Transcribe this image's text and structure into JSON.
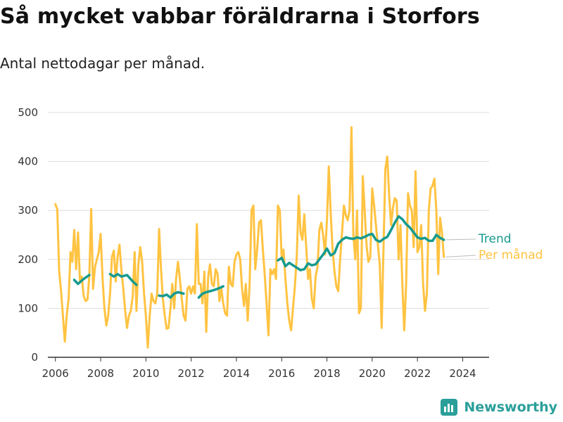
{
  "title": "Så mycket vabbar föräldrarna i Storfors",
  "subtitle": "Antal nettodagar per månad.",
  "brand": "Newsworthy",
  "colors": {
    "monthly": "#FFC342",
    "trend": "#169A8F",
    "grid": "#dddddd",
    "axis": "#333333",
    "brand": "#2A9F9A"
  },
  "chart_data": {
    "type": "line",
    "title": "Så mycket vabbar föräldrarna i Storfors",
    "subtitle": "Antal nettodagar per månad.",
    "xlabel": "",
    "ylabel": "",
    "xlim": [
      "2005-09",
      "2025-03"
    ],
    "ylim": [
      0,
      500
    ],
    "yticks": [
      0,
      100,
      200,
      300,
      400,
      500
    ],
    "xticks": [
      "2006",
      "2008",
      "2010",
      "2012",
      "2014",
      "2016",
      "2018",
      "2020",
      "2022",
      "2024"
    ],
    "grid": true,
    "legend_position": "right",
    "series": [
      {
        "name": "Per månad",
        "points": [
          [
            "2006-01",
            313
          ],
          [
            "2006-02",
            302
          ],
          [
            "2006-03",
            175
          ],
          [
            "2006-04",
            135
          ],
          [
            "2006-05",
            85
          ],
          [
            "2006-06",
            32
          ],
          [
            "2006-07",
            85
          ],
          [
            "2006-08",
            120
          ],
          [
            "2006-09",
            215
          ],
          [
            "2006-10",
            195
          ],
          [
            "2006-11",
            260
          ],
          [
            "2006-12",
            180
          ],
          [
            "2007-01",
            255
          ],
          [
            "2007-02",
            155
          ],
          [
            "2007-03",
            165
          ],
          [
            "2007-04",
            125
          ],
          [
            "2007-05",
            115
          ],
          [
            "2007-06",
            118
          ],
          [
            "2007-07",
            165
          ],
          [
            "2007-08",
            303
          ],
          [
            "2007-09",
            140
          ],
          [
            "2007-10",
            185
          ],
          [
            "2007-11",
            200
          ],
          [
            "2007-12",
            215
          ],
          [
            "2008-01",
            252
          ],
          [
            "2008-02",
            162
          ],
          [
            "2008-03",
            100
          ],
          [
            "2008-04",
            65
          ],
          [
            "2008-05",
            85
          ],
          [
            "2008-06",
            130
          ],
          [
            "2008-07",
            205
          ],
          [
            "2008-08",
            218
          ],
          [
            "2008-09",
            155
          ],
          [
            "2008-10",
            205
          ],
          [
            "2008-11",
            230
          ],
          [
            "2008-12",
            178
          ],
          [
            "2009-01",
            140
          ],
          [
            "2009-02",
            95
          ],
          [
            "2009-03",
            60
          ],
          [
            "2009-04",
            85
          ],
          [
            "2009-05",
            95
          ],
          [
            "2009-06",
            125
          ],
          [
            "2009-07",
            215
          ],
          [
            "2009-08",
            95
          ],
          [
            "2009-09",
            190
          ],
          [
            "2009-10",
            225
          ],
          [
            "2009-11",
            195
          ],
          [
            "2009-12",
            130
          ],
          [
            "2010-01",
            85
          ],
          [
            "2010-02",
            20
          ],
          [
            "2010-03",
            85
          ],
          [
            "2010-04",
            130
          ],
          [
            "2010-05",
            115
          ],
          [
            "2010-06",
            110
          ],
          [
            "2010-07",
            130
          ],
          [
            "2010-08",
            262
          ],
          [
            "2010-09",
            180
          ],
          [
            "2010-10",
            120
          ],
          [
            "2010-11",
            85
          ],
          [
            "2010-12",
            58
          ],
          [
            "2011-01",
            60
          ],
          [
            "2011-02",
            100
          ],
          [
            "2011-03",
            150
          ],
          [
            "2011-04",
            100
          ],
          [
            "2011-05",
            160
          ],
          [
            "2011-06",
            195
          ],
          [
            "2011-07",
            160
          ],
          [
            "2011-08",
            120
          ],
          [
            "2011-09",
            85
          ],
          [
            "2011-10",
            75
          ],
          [
            "2011-11",
            140
          ],
          [
            "2011-12",
            145
          ],
          [
            "2012-01",
            130
          ],
          [
            "2012-02",
            145
          ],
          [
            "2012-03",
            130
          ],
          [
            "2012-04",
            272
          ],
          [
            "2012-05",
            150
          ],
          [
            "2012-06",
            150
          ],
          [
            "2012-07",
            110
          ],
          [
            "2012-08",
            175
          ],
          [
            "2012-09",
            52
          ],
          [
            "2012-10",
            165
          ],
          [
            "2012-11",
            190
          ],
          [
            "2012-12",
            150
          ],
          [
            "2013-01",
            145
          ],
          [
            "2013-02",
            180
          ],
          [
            "2013-03",
            170
          ],
          [
            "2013-04",
            115
          ],
          [
            "2013-05",
            140
          ],
          [
            "2013-06",
            110
          ],
          [
            "2013-07",
            90
          ],
          [
            "2013-08",
            85
          ],
          [
            "2013-09",
            185
          ],
          [
            "2013-10",
            150
          ],
          [
            "2013-11",
            145
          ],
          [
            "2013-12",
            195
          ],
          [
            "2014-01",
            210
          ],
          [
            "2014-02",
            215
          ],
          [
            "2014-03",
            200
          ],
          [
            "2014-04",
            140
          ],
          [
            "2014-05",
            105
          ],
          [
            "2014-06",
            150
          ],
          [
            "2014-07",
            75
          ],
          [
            "2014-08",
            150
          ],
          [
            "2014-09",
            300
          ],
          [
            "2014-10",
            310
          ],
          [
            "2014-11",
            180
          ],
          [
            "2014-12",
            220
          ],
          [
            "2015-01",
            275
          ],
          [
            "2015-02",
            280
          ],
          [
            "2015-03",
            220
          ],
          [
            "2015-04",
            170
          ],
          [
            "2015-05",
            110
          ],
          [
            "2015-06",
            45
          ],
          [
            "2015-07",
            180
          ],
          [
            "2015-08",
            170
          ],
          [
            "2015-09",
            180
          ],
          [
            "2015-10",
            160
          ],
          [
            "2015-11",
            310
          ],
          [
            "2015-12",
            300
          ],
          [
            "2016-01",
            200
          ],
          [
            "2016-02",
            220
          ],
          [
            "2016-03",
            160
          ],
          [
            "2016-04",
            110
          ],
          [
            "2016-05",
            75
          ],
          [
            "2016-06",
            55
          ],
          [
            "2016-07",
            100
          ],
          [
            "2016-08",
            145
          ],
          [
            "2016-09",
            205
          ],
          [
            "2016-10",
            330
          ],
          [
            "2016-11",
            255
          ],
          [
            "2016-12",
            240
          ],
          [
            "2017-01",
            292
          ],
          [
            "2017-02",
            225
          ],
          [
            "2017-03",
            160
          ],
          [
            "2017-04",
            180
          ],
          [
            "2017-05",
            120
          ],
          [
            "2017-06",
            100
          ],
          [
            "2017-07",
            165
          ],
          [
            "2017-08",
            185
          ],
          [
            "2017-09",
            260
          ],
          [
            "2017-10",
            275
          ],
          [
            "2017-11",
            250
          ],
          [
            "2017-12",
            210
          ],
          [
            "2018-01",
            280
          ],
          [
            "2018-02",
            390
          ],
          [
            "2018-03",
            295
          ],
          [
            "2018-04",
            220
          ],
          [
            "2018-05",
            175
          ],
          [
            "2018-06",
            145
          ],
          [
            "2018-07",
            135
          ],
          [
            "2018-08",
            200
          ],
          [
            "2018-09",
            255
          ],
          [
            "2018-10",
            310
          ],
          [
            "2018-11",
            290
          ],
          [
            "2018-12",
            280
          ],
          [
            "2019-01",
            300
          ],
          [
            "2019-02",
            470
          ],
          [
            "2019-03",
            250
          ],
          [
            "2019-04",
            200
          ],
          [
            "2019-05",
            300
          ],
          [
            "2019-06",
            90
          ],
          [
            "2019-07",
            100
          ],
          [
            "2019-08",
            370
          ],
          [
            "2019-09",
            300
          ],
          [
            "2019-10",
            230
          ],
          [
            "2019-11",
            195
          ],
          [
            "2019-12",
            205
          ],
          [
            "2020-01",
            345
          ],
          [
            "2020-02",
            310
          ],
          [
            "2020-03",
            270
          ],
          [
            "2020-04",
            230
          ],
          [
            "2020-05",
            190
          ],
          [
            "2020-06",
            60
          ],
          [
            "2020-07",
            220
          ],
          [
            "2020-08",
            385
          ],
          [
            "2020-09",
            410
          ],
          [
            "2020-10",
            330
          ],
          [
            "2020-11",
            270
          ],
          [
            "2020-12",
            305
          ],
          [
            "2021-01",
            325
          ],
          [
            "2021-02",
            320
          ],
          [
            "2021-03",
            200
          ],
          [
            "2021-04",
            270
          ],
          [
            "2021-05",
            150
          ],
          [
            "2021-06",
            55
          ],
          [
            "2021-07",
            150
          ],
          [
            "2021-08",
            335
          ],
          [
            "2021-09",
            310
          ],
          [
            "2021-10",
            300
          ],
          [
            "2021-11",
            225
          ],
          [
            "2021-12",
            380
          ],
          [
            "2022-01",
            215
          ],
          [
            "2022-02",
            225
          ],
          [
            "2022-03",
            270
          ],
          [
            "2022-04",
            150
          ],
          [
            "2022-05",
            95
          ],
          [
            "2022-06",
            130
          ],
          [
            "2022-07",
            300
          ],
          [
            "2022-08",
            345
          ],
          [
            "2022-09",
            350
          ],
          [
            "2022-10",
            365
          ],
          [
            "2022-11",
            300
          ],
          [
            "2022-12",
            170
          ],
          [
            "2023-01",
            285
          ],
          [
            "2023-02",
            255
          ],
          [
            "2023-03",
            205
          ]
        ]
      },
      {
        "name": "Trend",
        "segments": [
          [
            [
              "2006-11",
              158
            ],
            [
              "2007-01",
              150
            ],
            [
              "2007-04",
              160
            ],
            [
              "2007-07",
              168
            ]
          ],
          [
            [
              "2008-06",
              170
            ],
            [
              "2008-08",
              165
            ],
            [
              "2008-10",
              170
            ],
            [
              "2008-12",
              165
            ],
            [
              "2009-03",
              168
            ],
            [
              "2009-06",
              155
            ],
            [
              "2009-08",
              148
            ]
          ],
          [
            [
              "2010-08",
              126
            ],
            [
              "2010-10",
              125
            ],
            [
              "2010-12",
              128
            ],
            [
              "2011-02",
              122
            ],
            [
              "2011-04",
              130
            ],
            [
              "2011-06",
              133
            ],
            [
              "2011-09",
              130
            ]
          ],
          [
            [
              "2012-05",
              122
            ],
            [
              "2012-07",
              130
            ],
            [
              "2012-09",
              133
            ],
            [
              "2012-12",
              136
            ],
            [
              "2013-03",
              140
            ],
            [
              "2013-06",
              145
            ]
          ],
          [
            [
              "2015-11",
              198
            ],
            [
              "2016-01",
              203
            ],
            [
              "2016-03",
              186
            ],
            [
              "2016-05",
              193
            ],
            [
              "2016-07",
              188
            ],
            [
              "2016-09",
              183
            ],
            [
              "2016-11",
              178
            ],
            [
              "2017-01",
              180
            ],
            [
              "2017-03",
              192
            ],
            [
              "2017-05",
              188
            ],
            [
              "2017-07",
              190
            ],
            [
              "2017-09",
              200
            ],
            [
              "2017-11",
              210
            ],
            [
              "2018-01",
              222
            ],
            [
              "2018-03",
              208
            ],
            [
              "2018-05",
              213
            ],
            [
              "2018-07",
              232
            ],
            [
              "2018-09",
              240
            ],
            [
              "2018-11",
              245
            ],
            [
              "2019-01",
              243
            ],
            [
              "2019-03",
              242
            ],
            [
              "2019-05",
              245
            ],
            [
              "2019-07",
              243
            ],
            [
              "2019-09",
              246
            ],
            [
              "2019-11",
              250
            ],
            [
              "2020-01",
              252
            ],
            [
              "2020-03",
              240
            ],
            [
              "2020-05",
              236
            ],
            [
              "2020-07",
              242
            ],
            [
              "2020-09",
              246
            ],
            [
              "2020-11",
              260
            ],
            [
              "2021-01",
              275
            ],
            [
              "2021-03",
              288
            ],
            [
              "2021-05",
              282
            ],
            [
              "2021-07",
              272
            ],
            [
              "2021-09",
              265
            ],
            [
              "2021-11",
              255
            ],
            [
              "2022-01",
              245
            ],
            [
              "2022-03",
              242
            ],
            [
              "2022-05",
              244
            ],
            [
              "2022-07",
              238
            ],
            [
              "2022-09",
              238
            ],
            [
              "2022-11",
              250
            ],
            [
              "2023-01",
              244
            ],
            [
              "2023-03",
              240
            ]
          ]
        ]
      }
    ]
  }
}
